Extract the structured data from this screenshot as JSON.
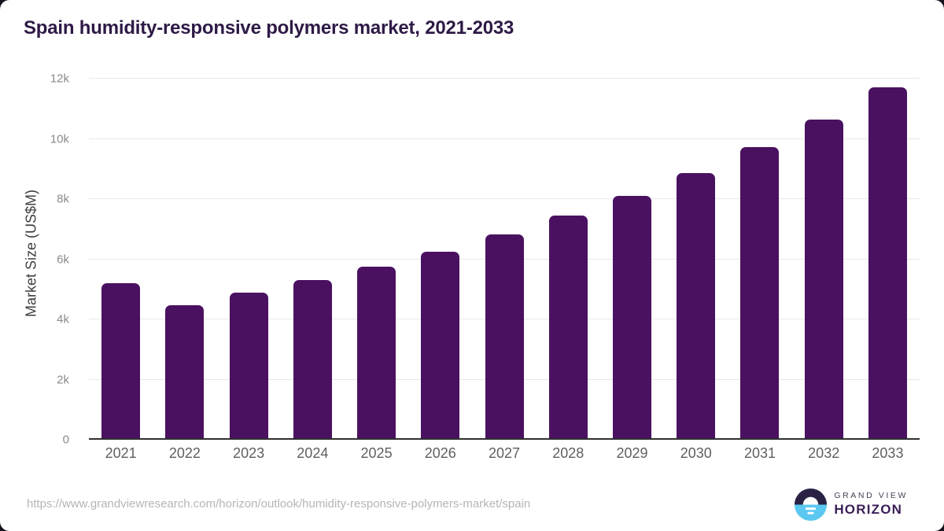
{
  "title": "Spain humidity-responsive polymers market, 2021-2033",
  "chart_data": {
    "type": "bar",
    "title": "Spain humidity-responsive polymers market, 2021-2033",
    "categories": [
      "2021",
      "2022",
      "2023",
      "2024",
      "2025",
      "2026",
      "2027",
      "2028",
      "2029",
      "2030",
      "2031",
      "2032",
      "2033"
    ],
    "values": [
      5200,
      4460,
      4880,
      5310,
      5760,
      6250,
      6820,
      7460,
      8100,
      8870,
      9720,
      10650,
      11700
    ],
    "xlabel": "",
    "ylabel": "Market Size (US$M)",
    "ylim": [
      0,
      12000
    ],
    "yticks": [
      {
        "value": 0,
        "label": "0"
      },
      {
        "value": 2000,
        "label": "2k"
      },
      {
        "value": 4000,
        "label": "4k"
      },
      {
        "value": 6000,
        "label": "6k"
      },
      {
        "value": 8000,
        "label": "8k"
      },
      {
        "value": 10000,
        "label": "10k"
      },
      {
        "value": 12000,
        "label": "12k"
      }
    ],
    "grid": "horizontal",
    "legend": "none",
    "bar_color": "#4a1161"
  },
  "colors": {
    "bar": "#4a1161",
    "title_text": "#2e1a46",
    "axis_line": "#2f2f2f",
    "gridline": "#e8e8e8",
    "tick_text": "#8a8a8a",
    "logo_dark": "#2b2144",
    "logo_blue": "#5ac8f0"
  },
  "footer": {
    "source_url": "https://www.grandviewresearch.com/horizon/outlook/humidity-responsive-polymers-market/spain",
    "logo": {
      "line1": "GRAND VIEW",
      "line2": "HORIZON"
    }
  }
}
